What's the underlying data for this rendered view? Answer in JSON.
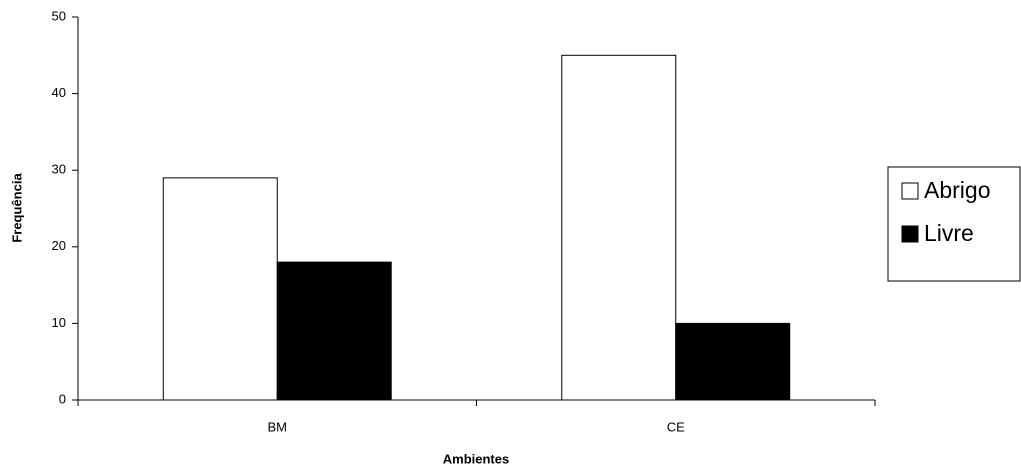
{
  "chart_data": {
    "type": "bar",
    "x_label": "Ambientes",
    "y_label": "Frequência",
    "categories": [
      "BM",
      "CE"
    ],
    "series": [
      {
        "name": "Abrigo",
        "color": "#ffffff",
        "values": [
          29,
          45
        ]
      },
      {
        "name": "Livre",
        "color": "#000000",
        "values": [
          18,
          10
        ]
      }
    ],
    "ylim": [
      0,
      50
    ],
    "yticks": [
      0,
      10,
      20,
      30,
      40,
      50
    ],
    "grid": false,
    "legend": "right"
  }
}
